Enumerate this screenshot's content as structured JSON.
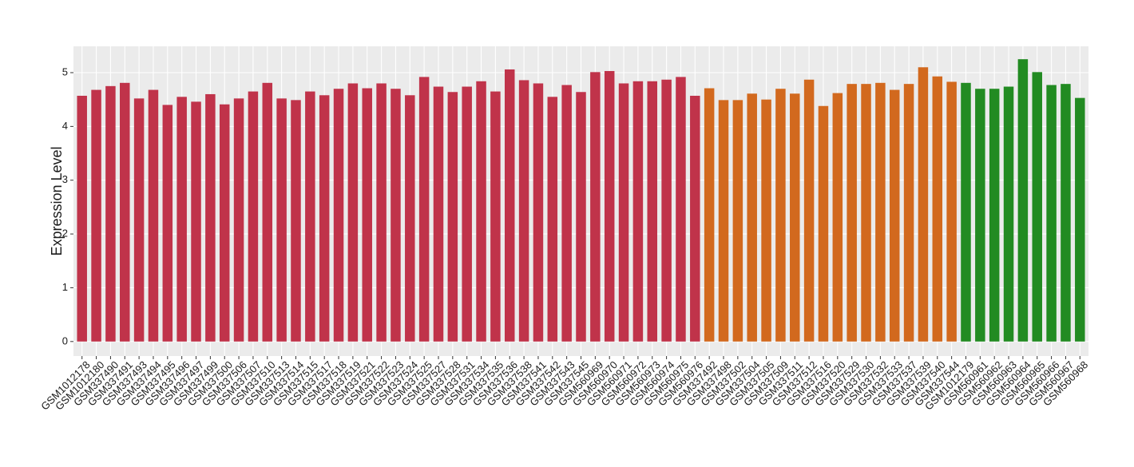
{
  "chart_data": {
    "type": "bar",
    "y_label": "Expression Level",
    "categories": [
      "GSM1012178",
      "GSM1012180",
      "GSM337490",
      "GSM337491",
      "GSM337493",
      "GSM337494",
      "GSM337495",
      "GSM337496",
      "GSM337497",
      "GSM337499",
      "GSM337500",
      "GSM337506",
      "GSM337507",
      "GSM337510",
      "GSM337513",
      "GSM337514",
      "GSM337515",
      "GSM337517",
      "GSM337518",
      "GSM337519",
      "GSM337521",
      "GSM337522",
      "GSM337523",
      "GSM337524",
      "GSM337525",
      "GSM337527",
      "GSM337528",
      "GSM337531",
      "GSM337534",
      "GSM337535",
      "GSM337536",
      "GSM337538",
      "GSM337541",
      "GSM337542",
      "GSM337543",
      "GSM337545",
      "GSM560969",
      "GSM560970",
      "GSM560971",
      "GSM560972",
      "GSM560973",
      "GSM560974",
      "GSM560975",
      "GSM560976",
      "GSM337492",
      "GSM337498",
      "GSM337502",
      "GSM337504",
      "GSM337505",
      "GSM337509",
      "GSM337511",
      "GSM337512",
      "GSM337516",
      "GSM337520",
      "GSM337529",
      "GSM337530",
      "GSM337532",
      "GSM337533",
      "GSM337537",
      "GSM337539",
      "GSM337540",
      "GSM337544",
      "GSM1012179",
      "GSM560961",
      "GSM560962",
      "GSM560963",
      "GSM560964",
      "GSM560965",
      "GSM560966",
      "GSM560967",
      "GSM560968"
    ],
    "values": [
      4.57,
      4.68,
      4.75,
      4.81,
      4.52,
      4.68,
      4.4,
      4.55,
      4.46,
      4.6,
      4.41,
      4.52,
      4.65,
      4.81,
      4.52,
      4.49,
      4.65,
      4.58,
      4.7,
      4.8,
      4.71,
      4.8,
      4.7,
      4.58,
      4.92,
      4.74,
      4.64,
      4.74,
      4.84,
      4.65,
      5.06,
      4.86,
      4.8,
      4.55,
      4.77,
      4.64,
      5.01,
      5.03,
      4.8,
      4.84,
      4.84,
      4.87,
      4.92,
      4.57,
      4.71,
      4.49,
      4.49,
      4.61,
      4.5,
      4.7,
      4.61,
      4.87,
      4.38,
      4.62,
      4.79,
      4.79,
      4.81,
      4.68,
      4.79,
      5.1,
      4.93,
      4.83,
      4.81,
      4.7,
      4.7,
      4.74,
      5.25,
      5.01,
      4.77,
      4.79,
      4.53
    ],
    "colors": [
      "#c0334a",
      "#c0334a",
      "#c0334a",
      "#c0334a",
      "#c0334a",
      "#c0334a",
      "#c0334a",
      "#c0334a",
      "#c0334a",
      "#c0334a",
      "#c0334a",
      "#c0334a",
      "#c0334a",
      "#c0334a",
      "#c0334a",
      "#c0334a",
      "#c0334a",
      "#c0334a",
      "#c0334a",
      "#c0334a",
      "#c0334a",
      "#c0334a",
      "#c0334a",
      "#c0334a",
      "#c0334a",
      "#c0334a",
      "#c0334a",
      "#c0334a",
      "#c0334a",
      "#c0334a",
      "#c0334a",
      "#c0334a",
      "#c0334a",
      "#c0334a",
      "#c0334a",
      "#c0334a",
      "#c0334a",
      "#c0334a",
      "#c0334a",
      "#c0334a",
      "#c0334a",
      "#c0334a",
      "#c0334a",
      "#c0334a",
      "#d2691e",
      "#d2691e",
      "#d2691e",
      "#d2691e",
      "#d2691e",
      "#d2691e",
      "#d2691e",
      "#d2691e",
      "#d2691e",
      "#d2691e",
      "#d2691e",
      "#d2691e",
      "#d2691e",
      "#d2691e",
      "#d2691e",
      "#d2691e",
      "#d2691e",
      "#d2691e",
      "#228b22",
      "#228b22",
      "#228b22",
      "#228b22",
      "#228b22",
      "#228b22",
      "#228b22",
      "#228b22",
      "#228b22"
    ],
    "ylim": [
      -0.27,
      5.49
    ],
    "yticks": [
      0,
      1,
      2,
      3,
      4,
      5
    ],
    "grid": true
  }
}
